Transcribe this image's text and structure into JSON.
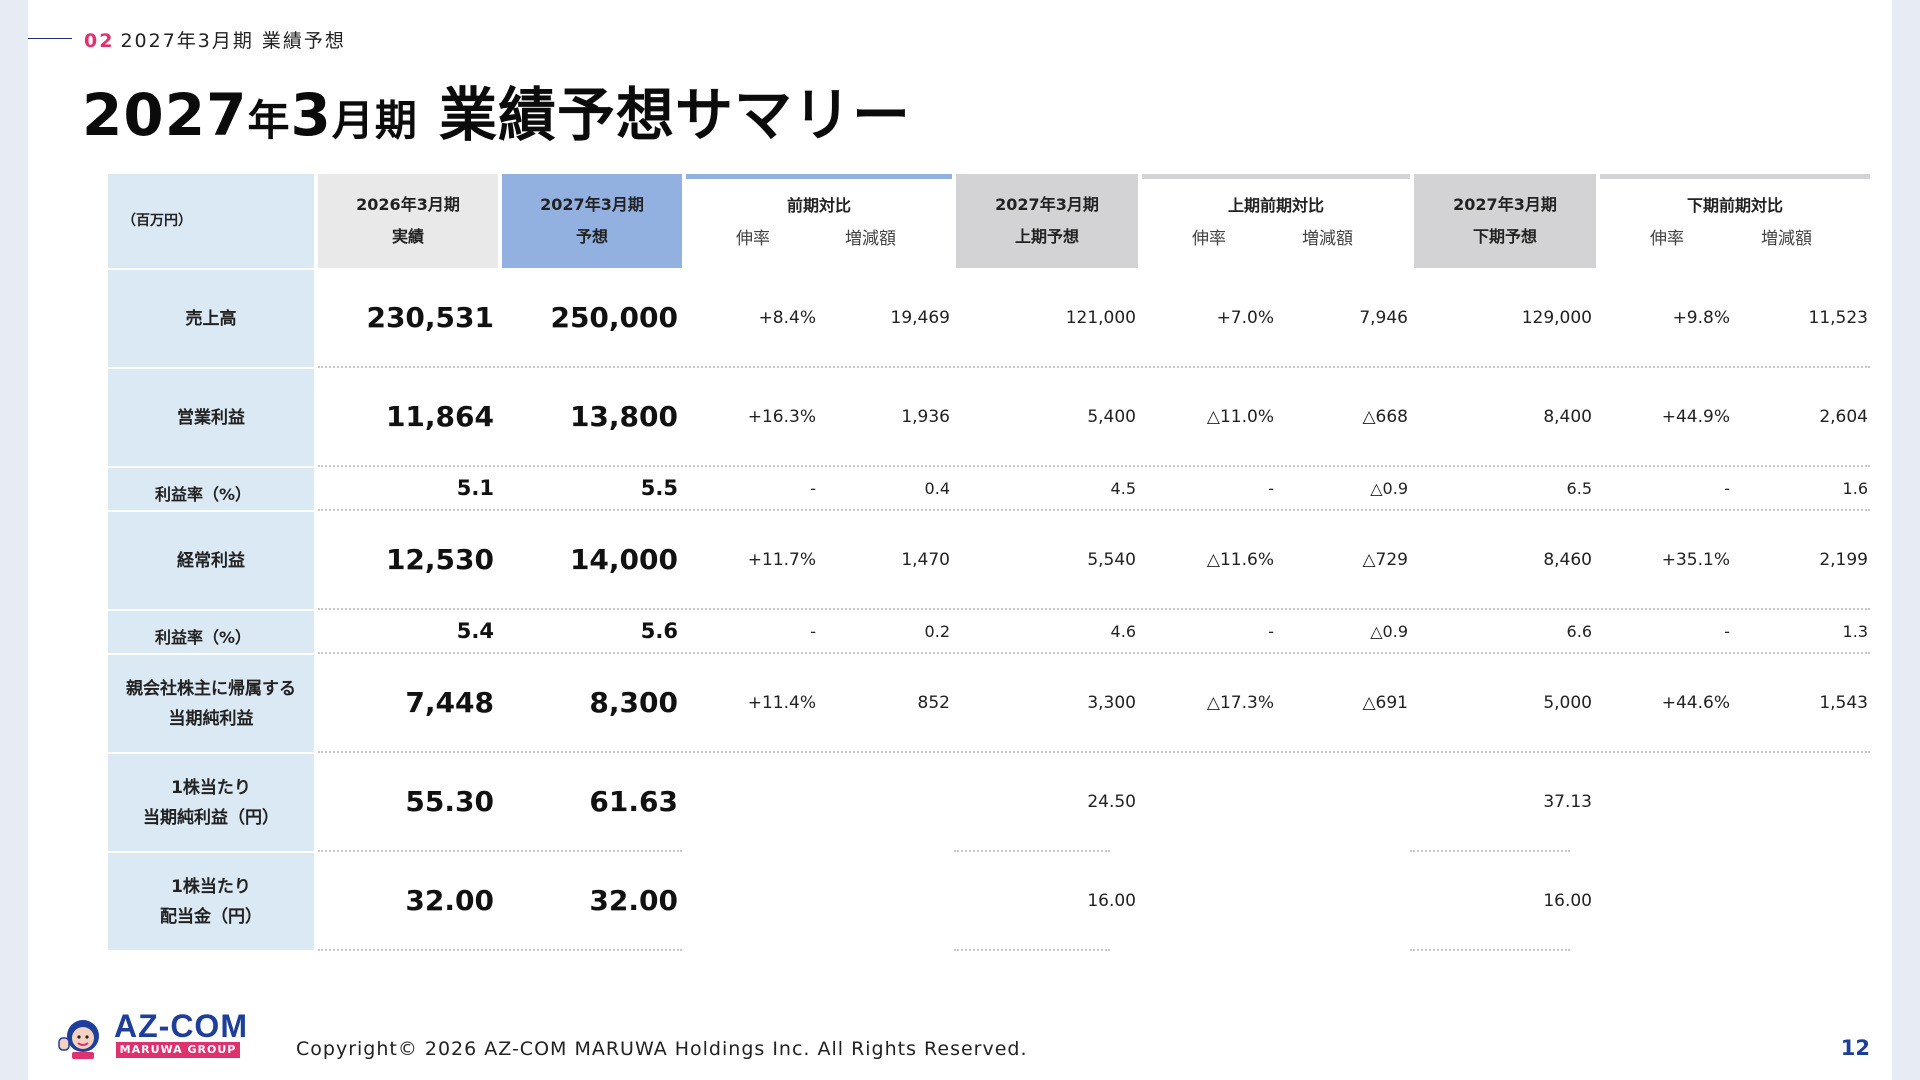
{
  "section": {
    "number": "02",
    "label": "2027年3月期 業績予想"
  },
  "title": {
    "p1": "2027",
    "p2": "年",
    "p3": "3",
    "p4": "月期",
    "p5": " 業績予想サマリー"
  },
  "table": {
    "unit": "（百万円）",
    "headers": {
      "actual": [
        "2026年3月期",
        "実績"
      ],
      "forecast": [
        "2027年3月期",
        "予想"
      ],
      "yoy": {
        "title": "前期対比",
        "sub1": "伸率",
        "sub2": "増減額"
      },
      "h1": [
        "2027年3月期",
        "上期予想"
      ],
      "h1yoy": {
        "title": "上期前期対比",
        "sub1": "伸率",
        "sub2": "増減額"
      },
      "h2": [
        "2027年3月期",
        "下期予想"
      ],
      "h2yoy": {
        "title": "下期前期対比",
        "sub1": "伸率",
        "sub2": "増減額"
      }
    },
    "rows": [
      {
        "label": [
          "売上高"
        ],
        "values": [
          "230,531",
          "250,000",
          "+8.4%",
          "19,469",
          "121,000",
          "+7.0%",
          "7,946",
          "129,000",
          "+9.8%",
          "11,523"
        ]
      },
      {
        "label": [
          "営業利益"
        ],
        "values": [
          "11,864",
          "13,800",
          "+16.3%",
          "1,936",
          "5,400",
          "△11.0%",
          "△668",
          "8,400",
          "+44.9%",
          "2,604"
        ]
      },
      {
        "label": [
          "利益率（%）"
        ],
        "values": [
          "5.1",
          "5.5",
          "-",
          "0.4",
          "4.5",
          "-",
          "△0.9",
          "6.5",
          "-",
          "1.6"
        ]
      },
      {
        "label": [
          "経常利益"
        ],
        "values": [
          "12,530",
          "14,000",
          "+11.7%",
          "1,470",
          "5,540",
          "△11.6%",
          "△729",
          "8,460",
          "+35.1%",
          "2,199"
        ]
      },
      {
        "label": [
          "利益率（%）"
        ],
        "values": [
          "5.4",
          "5.6",
          "-",
          "0.2",
          "4.6",
          "-",
          "△0.9",
          "6.6",
          "-",
          "1.3"
        ]
      },
      {
        "label": [
          "親会社株主に帰属する",
          "当期純利益"
        ],
        "values": [
          "7,448",
          "8,300",
          "+11.4%",
          "852",
          "3,300",
          "△17.3%",
          "△691",
          "5,000",
          "+44.6%",
          "1,543"
        ]
      },
      {
        "label": [
          "1株当たり",
          "当期純利益（円）"
        ],
        "values": [
          "55.30",
          "61.63",
          "",
          "",
          "24.50",
          "",
          "",
          "37.13",
          "",
          ""
        ]
      },
      {
        "label": [
          "1株当たり",
          "配当金（円）"
        ],
        "values": [
          "32.00",
          "32.00",
          "",
          "",
          "16.00",
          "",
          "",
          "16.00",
          "",
          ""
        ]
      }
    ]
  },
  "footer": {
    "logo_text": "AZ-COM",
    "logo_sub": "MARUWA GROUP",
    "copyright": "Copyright© 2026 AZ-COM MARUWA Holdings Inc. All Rights Reserved.",
    "page": "12"
  },
  "colors": {
    "accent": "#e0316f",
    "brand": "#1d3f9a",
    "label_bg": "#dbe9f4",
    "forecast_header": "#92b1e0"
  }
}
